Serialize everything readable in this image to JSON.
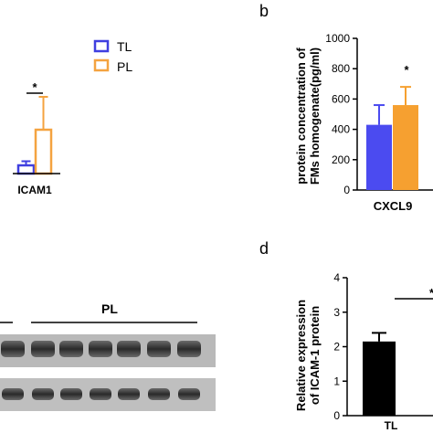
{
  "panels": {
    "a": {
      "legend": [
        {
          "label": "TL",
          "color": "#3F3FE0"
        },
        {
          "label": "PL",
          "color": "#F4A340"
        }
      ],
      "significance": "*",
      "category_label": "ICAM1"
    },
    "b": {
      "letter": "b",
      "ylabel_line1": "protein concentration of",
      "ylabel_line2": "FMs homogenate(pg/ml)",
      "significance": "*"
    },
    "c": {
      "group_label": "PL"
    },
    "d": {
      "letter": "d",
      "ylabel_line1": "Relative expression",
      "ylabel_line2": "of ICAM-1 protein",
      "significance": "*",
      "category_label": "TL"
    }
  },
  "chart_data": [
    {
      "type": "bar",
      "panel": "a",
      "categories": [
        "ICAM1"
      ],
      "series": [
        {
          "name": "TL",
          "values": [
            6
          ],
          "error": [
            3
          ],
          "color": "#3F3FE0"
        },
        {
          "name": "PL",
          "values": [
            32
          ],
          "error": [
            24
          ],
          "color": "#F4A340"
        }
      ]
    },
    {
      "type": "bar",
      "panel": "b",
      "categories": [
        "CXCL9"
      ],
      "series": [
        {
          "name": "TL",
          "values": [
            430
          ],
          "error": [
            130
          ],
          "color": "#4B4BF0"
        },
        {
          "name": "PL",
          "values": [
            560
          ],
          "error": [
            120
          ],
          "color": "#F6A030"
        }
      ],
      "ylim": [
        0,
        1000
      ],
      "yticks": [
        "0",
        "200",
        "400",
        "600",
        "800",
        "1000"
      ]
    },
    {
      "type": "bar",
      "panel": "d",
      "categories": [
        "TL"
      ],
      "series": [
        {
          "name": "TL",
          "values": [
            2.15
          ],
          "error": [
            0.25
          ],
          "color": "#000000"
        }
      ],
      "ylim": [
        0,
        4
      ],
      "yticks": [
        "0",
        "1",
        "2",
        "3",
        "4"
      ]
    }
  ]
}
